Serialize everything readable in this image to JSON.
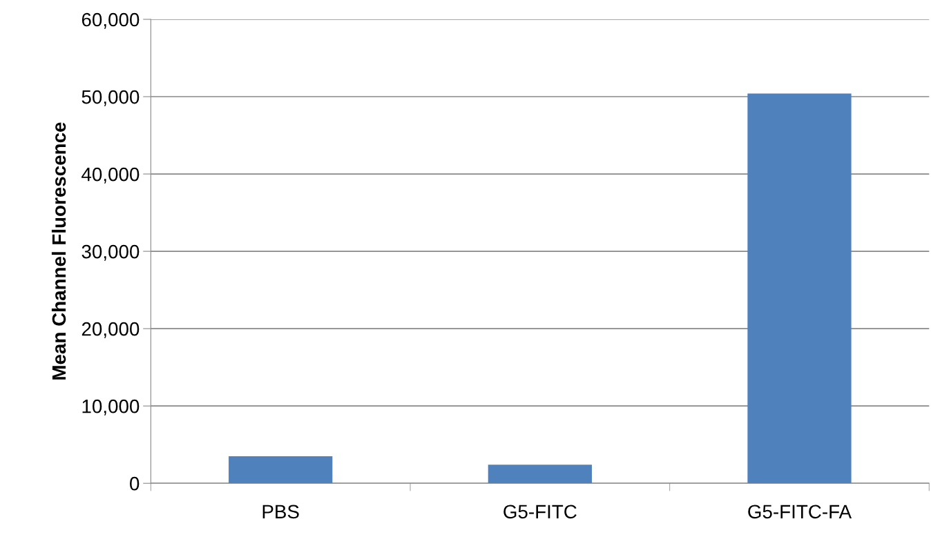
{
  "chart_data": {
    "type": "bar",
    "ylabel": "Mean Channel Fluorescence",
    "categories": [
      "PBS",
      "G5-FITC",
      "G5-FITC-FA"
    ],
    "values": [
      3500,
      2400,
      50400
    ],
    "color": "#4f81bd",
    "ylim": [
      0,
      60000
    ],
    "yticks": [
      {
        "value": 0,
        "label": "0"
      },
      {
        "value": 10000,
        "label": "10,000"
      },
      {
        "value": 20000,
        "label": "20,000"
      },
      {
        "value": 30000,
        "label": "30,000"
      },
      {
        "value": 40000,
        "label": "40,000"
      },
      {
        "value": 50000,
        "label": "50,000"
      },
      {
        "value": 60000,
        "label": "60,000"
      }
    ],
    "grid": "y"
  }
}
